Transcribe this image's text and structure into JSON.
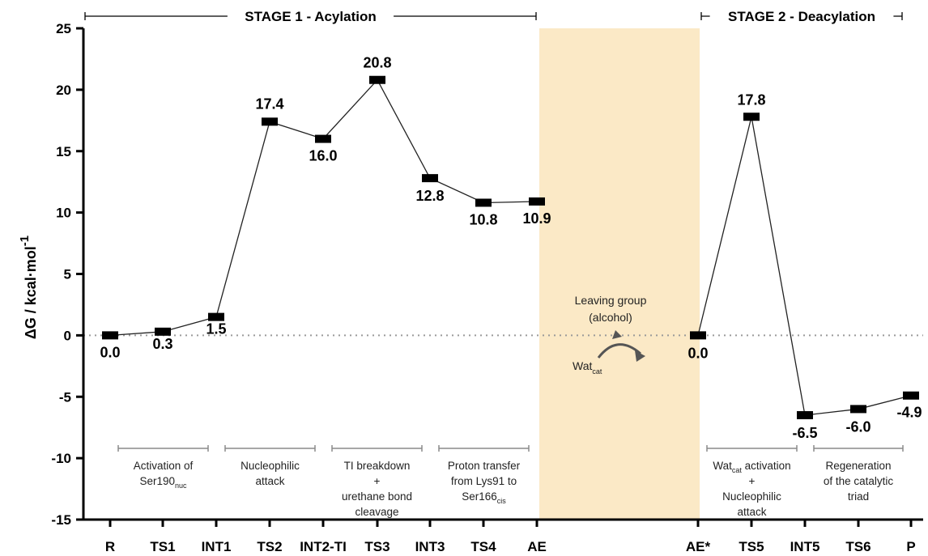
{
  "chart_data": {
    "type": "line",
    "ylabel": "ΔG / kcal·mol",
    "ylabel_sup": "-1",
    "ylim": [
      -15,
      25
    ],
    "yticks": [
      "25",
      "20",
      "15",
      "10",
      "5",
      "0",
      "-5",
      "-10",
      "-15"
    ],
    "ytick_values": [
      25,
      20,
      15,
      10,
      5,
      0,
      -5,
      -10,
      -15
    ],
    "grid": false,
    "zero_line": "dotted",
    "stages": [
      {
        "label": "STAGE 1 - Acylation",
        "span": [
          "R",
          "AE"
        ]
      },
      {
        "label": "STAGE 2 - Deacylation",
        "span": [
          "AE*",
          "P"
        ]
      }
    ],
    "series": [
      {
        "categories": [
          "R",
          "TS1",
          "INT1",
          "TS2",
          "INT2-TI",
          "TS3",
          "INT3",
          "TS4",
          "AE"
        ],
        "values": [
          0.0,
          0.3,
          1.5,
          17.4,
          16.0,
          20.8,
          12.8,
          10.8,
          10.9
        ],
        "labels": [
          "0.0",
          "0.3",
          "1.5",
          "17.4",
          "16.0",
          "20.8",
          "12.8",
          "10.8",
          "10.9"
        ]
      },
      {
        "categories": [
          "AE*",
          "TS5",
          "INT5",
          "TS6",
          "P"
        ],
        "values": [
          0.0,
          17.8,
          -6.5,
          -6.0,
          -4.9
        ],
        "labels": [
          "0.0",
          "17.8",
          "-6.5",
          "-6.0",
          "-4.9"
        ]
      }
    ],
    "steps": [
      {
        "lines": [
          {
            "text": "Activation of"
          },
          {
            "text": "Ser190",
            "sub": "nuc"
          }
        ]
      },
      {
        "lines": [
          {
            "text": "Nucleophilic"
          },
          {
            "text": "attack"
          }
        ]
      },
      {
        "lines": [
          {
            "text": "TI breakdown"
          },
          {
            "text": "+"
          },
          {
            "text": "urethane bond"
          },
          {
            "text": "cleavage"
          }
        ]
      },
      {
        "lines": [
          {
            "text": "Proton transfer"
          },
          {
            "text": "from Lys91 to"
          },
          {
            "text": "Ser166",
            "sub": "cis"
          }
        ]
      },
      {
        "lines": [
          {
            "text": "Wat",
            "sub": "cat",
            "tail": " activation"
          },
          {
            "text": "+"
          },
          {
            "text": "Nucleophilic"
          },
          {
            "text": "attack"
          }
        ]
      },
      {
        "lines": [
          {
            "text": "Regeneration"
          },
          {
            "text": "of the catalytic"
          },
          {
            "text": "triad"
          }
        ]
      }
    ],
    "highlight_color": "#fbe9c6",
    "annotation": {
      "leaving_line1": "Leaving group",
      "leaving_line2": "(alcohol)",
      "water": "Wat",
      "water_sub": "cat"
    }
  }
}
